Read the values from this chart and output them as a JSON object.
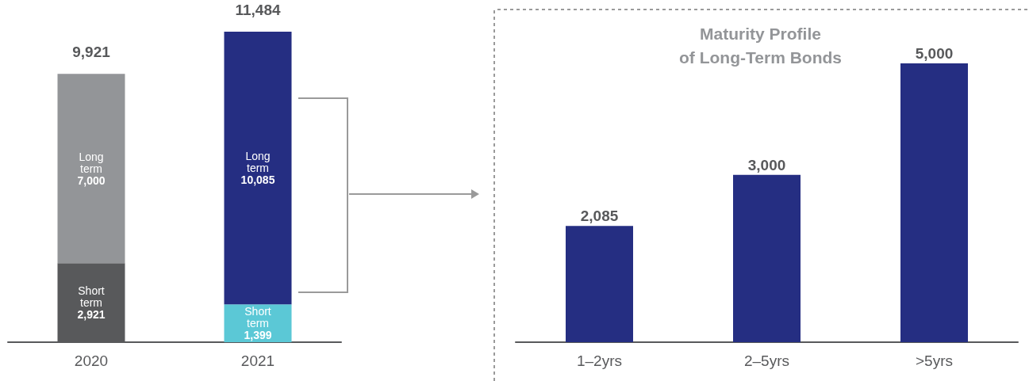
{
  "chart_data": [
    {
      "type": "bar",
      "stacked": true,
      "categories": [
        "2020",
        "2021"
      ],
      "series": [
        {
          "name": "Short term",
          "colors": [
            "#58595b",
            "#5bc8d6"
          ],
          "values": [
            2921,
            1399
          ],
          "value_labels": [
            "2,921",
            "1,399"
          ]
        },
        {
          "name": "Long term",
          "colors": [
            "#939598",
            "#252e82"
          ],
          "values": [
            7000,
            10085
          ],
          "value_labels": [
            "7,000",
            "10,085"
          ]
        }
      ],
      "totals": [
        "9,921",
        "11,484"
      ],
      "legend": false
    },
    {
      "type": "bar",
      "title": "Maturity Profile\nof Long-Term Bonds",
      "categories": [
        "1–2yrs",
        "2–5yrs",
        ">5yrs"
      ],
      "values": [
        2085,
        3000,
        5000
      ],
      "color": "#252e82",
      "value_labels": [
        "2,085",
        "3,000",
        "5,000"
      ],
      "legend": false
    }
  ]
}
